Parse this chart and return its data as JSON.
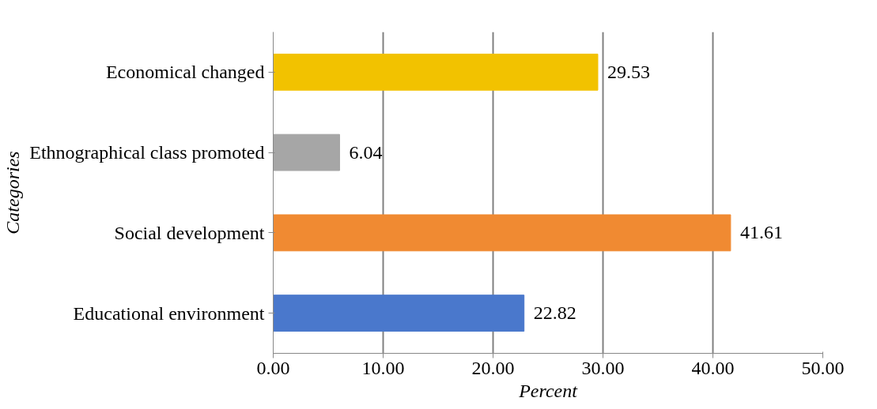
{
  "chart_data": {
    "type": "bar",
    "orientation": "horizontal",
    "xlabel": "Percent",
    "ylabel": "Categories",
    "categories": [
      "Economical changed",
      "Ethnographical class promoted",
      "Social development",
      "Educational environment"
    ],
    "values": [
      29.53,
      6.04,
      41.61,
      22.82
    ],
    "colors": [
      "#f2c200",
      "#a6a6a6",
      "#f08a32",
      "#4a78cc"
    ],
    "xlim": [
      0,
      50
    ],
    "xticks": [
      {
        "value": 0,
        "label": "0.00"
      },
      {
        "value": 10,
        "label": "10.00"
      },
      {
        "value": 20,
        "label": "20.00"
      },
      {
        "value": 30,
        "label": "30.00"
      },
      {
        "value": 40,
        "label": "40.00"
      },
      {
        "value": 50,
        "label": "50.00"
      }
    ],
    "grid": "x",
    "data_labels": true
  }
}
